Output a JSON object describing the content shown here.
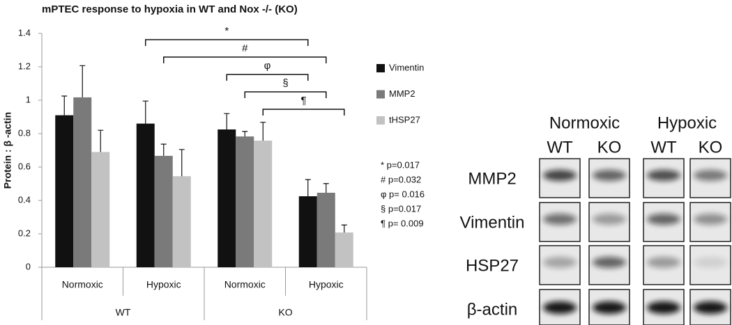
{
  "chart_data": {
    "type": "bar",
    "title": "mPTEC response to hypoxia in WT and Nox -/- (KO)",
    "y_label": "Protein : β -actin",
    "categories": [
      "Normoxic",
      "Hypoxic",
      "Normoxic",
      "Hypoxic"
    ],
    "groups": [
      "WT",
      "KO"
    ],
    "series": [
      {
        "name": "Vimentin",
        "color": "#111111",
        "values": [
          0.91,
          0.86,
          0.825,
          0.425
        ],
        "errors": [
          0.115,
          0.135,
          0.095,
          0.1
        ]
      },
      {
        "name": "MMP2",
        "color": "#7a7a7a",
        "values": [
          1.017,
          0.667,
          0.783,
          0.446
        ],
        "errors": [
          0.19,
          0.07,
          0.03,
          0.055
        ]
      },
      {
        "name": "tHSP27",
        "color": "#c2c2c2",
        "values": [
          0.69,
          0.545,
          0.758,
          0.208
        ],
        "errors": [
          0.13,
          0.16,
          0.11,
          0.045
        ]
      }
    ],
    "ylim": [
      0,
      1.4
    ],
    "yticks": [
      0,
      {
        "value": 0.2,
        "label": "0.2"
      },
      {
        "value": 0.4,
        "label": "0.4"
      },
      {
        "value": 0.6,
        "label": "0.6"
      },
      {
        "value": 0.8,
        "label": "0.8"
      },
      1,
      {
        "value": 1.2,
        "label": "1.2"
      },
      {
        "value": 1.4,
        "label": "1.4"
      }
    ],
    "brackets": [
      {
        "symbol": "*",
        "from": [
          1,
          0
        ],
        "to": [
          3,
          0
        ]
      },
      {
        "symbol": "#",
        "from": [
          1,
          1
        ],
        "to": [
          3,
          1
        ]
      },
      {
        "symbol": "φ",
        "from": [
          2,
          0
        ],
        "to": [
          3,
          0
        ]
      },
      {
        "symbol": "§",
        "from": [
          2,
          1
        ],
        "to": [
          3,
          1
        ]
      },
      {
        "symbol": "¶",
        "from": [
          2,
          2
        ],
        "to": [
          3,
          2
        ]
      }
    ],
    "p_values": [
      "* p=0.017",
      "# p=0.032",
      "φ p= 0.016",
      "§ p=0.017",
      "¶ p= 0.009"
    ]
  },
  "blot": {
    "conditions": [
      "Normoxic",
      "Hypoxic"
    ],
    "genotypes": [
      "WT",
      "KO",
      "WT",
      "KO"
    ],
    "rows": [
      "MMP2",
      "Vimentin",
      "HSP27",
      "β-actin"
    ]
  }
}
